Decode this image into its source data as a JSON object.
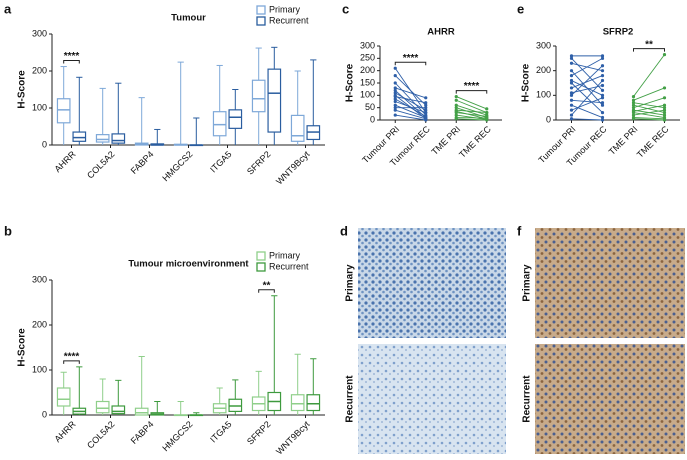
{
  "chart_data": [
    {
      "type": "box",
      "panel": "a",
      "title": "Tumour",
      "ylabel": "H-Score",
      "categories": [
        "AHRR",
        "COL5A2",
        "FABP4",
        "HMGCS2",
        "ITGA5",
        "SFRP2",
        "WNT9Bcyt"
      ],
      "ylim": [
        0,
        300
      ],
      "yticks": [
        0,
        100,
        200,
        300
      ],
      "legend": "top-right",
      "series": [
        {
          "name": "Primary",
          "color": "#7ea8d8",
          "boxes": [
            [
              0,
              60,
              95,
              125,
              212
            ],
            [
              0,
              8,
              15,
              28,
              153
            ],
            [
              0,
              0,
              2,
              5,
              128
            ],
            [
              0,
              0,
              0,
              2,
              224
            ],
            [
              0,
              25,
              55,
              90,
              215
            ],
            [
              0,
              90,
              125,
              175,
              262
            ],
            [
              0,
              10,
              25,
              80,
              200
            ]
          ]
        },
        {
          "name": "Recurrent",
          "color": "#2a5d9f",
          "boxes": [
            [
              0,
              10,
              20,
              35,
              183
            ],
            [
              0,
              5,
              12,
              30,
              167
            ],
            [
              0,
              0,
              0,
              3,
              42
            ],
            [
              0,
              0,
              0,
              0,
              73
            ],
            [
              0,
              45,
              75,
              95,
              150
            ],
            [
              0,
              35,
              140,
              205,
              264
            ],
            [
              0,
              15,
              35,
              52,
              230
            ]
          ]
        }
      ],
      "annotations": [
        {
          "text": "****",
          "category": "AHRR"
        }
      ]
    },
    {
      "type": "box",
      "panel": "b",
      "title": "Tumour microenvironment",
      "ylabel": "H-Score",
      "categories": [
        "AHRR",
        "COL5A2",
        "FABP4",
        "HMGCS2",
        "ITGA5",
        "SFRP2",
        "WNT9Bcyt"
      ],
      "ylim": [
        0,
        300
      ],
      "yticks": [
        0,
        100,
        200,
        300
      ],
      "legend": "top-right",
      "series": [
        {
          "name": "Primary",
          "color": "#8fcf8a",
          "boxes": [
            [
              0,
              20,
              35,
              60,
              95
            ],
            [
              0,
              5,
              15,
              30,
              80
            ],
            [
              0,
              0,
              5,
              15,
              130
            ],
            [
              0,
              0,
              0,
              0,
              30
            ],
            [
              0,
              5,
              15,
              25,
              60
            ],
            [
              0,
              10,
              25,
              40,
              97
            ],
            [
              0,
              10,
              25,
              45,
              135
            ]
          ]
        },
        {
          "name": "Recurrent",
          "color": "#3e9a3e",
          "boxes": [
            [
              0,
              2,
              8,
              15,
              107
            ],
            [
              0,
              3,
              8,
              20,
              77
            ],
            [
              0,
              0,
              2,
              5,
              30
            ],
            [
              0,
              0,
              0,
              0,
              5
            ],
            [
              0,
              8,
              20,
              35,
              78
            ],
            [
              0,
              10,
              30,
              50,
              265
            ],
            [
              0,
              10,
              25,
              45,
              125
            ]
          ]
        }
      ],
      "annotations": [
        {
          "text": "****",
          "category": "AHRR"
        },
        {
          "text": "**",
          "category": "SFRP2"
        }
      ]
    },
    {
      "type": "paired",
      "panel": "c",
      "title": "AHRR",
      "ylabel": "H-Score",
      "categories": [
        "Tumour PRI",
        "Tumour REC",
        "TME PRI",
        "TME REC"
      ],
      "ylim": [
        0,
        300
      ],
      "yticks": [
        0,
        50,
        100,
        150,
        200,
        250,
        300
      ],
      "groups": [
        {
          "color": "#2e5fa8",
          "pairs": [
            [
              210,
              30
            ],
            [
              180,
              60
            ],
            [
              150,
              20
            ],
            [
              130,
              90
            ],
            [
              120,
              10
            ],
            [
              110,
              40
            ],
            [
              100,
              5
            ],
            [
              95,
              70
            ],
            [
              85,
              15
            ],
            [
              75,
              30
            ],
            [
              60,
              10
            ],
            [
              50,
              50
            ],
            [
              40,
              5
            ],
            [
              20,
              0
            ]
          ]
        },
        {
          "color": "#43a047",
          "pairs": [
            [
              95,
              45
            ],
            [
              80,
              30
            ],
            [
              60,
              20
            ],
            [
              50,
              10
            ],
            [
              40,
              30
            ],
            [
              35,
              5
            ],
            [
              30,
              15
            ],
            [
              20,
              2
            ],
            [
              10,
              8
            ],
            [
              5,
              0
            ]
          ]
        }
      ],
      "annotations": [
        {
          "text": "****",
          "from": "Tumour PRI",
          "to": "Tumour REC"
        },
        {
          "text": "****",
          "from": "TME PRI",
          "to": "TME REC"
        }
      ]
    },
    {
      "type": "paired",
      "panel": "e",
      "title": "SFRP2",
      "ylabel": "H-Score",
      "categories": [
        "Tumour PRI",
        "Tumour REC",
        "TME PRI",
        "TME REC"
      ],
      "ylim": [
        0,
        300
      ],
      "yticks": [
        0,
        100,
        200,
        300
      ],
      "groups": [
        {
          "color": "#2e5fa8",
          "pairs": [
            [
              260,
              260
            ],
            [
              250,
              120
            ],
            [
              230,
              200
            ],
            [
              200,
              60
            ],
            [
              180,
              250
            ],
            [
              160,
              100
            ],
            [
              150,
              30
            ],
            [
              130,
              180
            ],
            [
              110,
              140
            ],
            [
              100,
              220
            ],
            [
              80,
              70
            ],
            [
              60,
              10
            ],
            [
              40,
              90
            ],
            [
              20,
              160
            ],
            [
              5,
              0
            ]
          ]
        },
        {
          "color": "#43a047",
          "pairs": [
            [
              95,
              265
            ],
            [
              80,
              130
            ],
            [
              70,
              50
            ],
            [
              60,
              30
            ],
            [
              50,
              90
            ],
            [
              40,
              20
            ],
            [
              35,
              60
            ],
            [
              30,
              10
            ],
            [
              20,
              40
            ],
            [
              10,
              5
            ],
            [
              5,
              0
            ]
          ]
        }
      ],
      "annotations": [
        {
          "text": "**",
          "from": "TME PRI",
          "to": "TME REC"
        }
      ]
    }
  ],
  "images": [
    {
      "panel": "d",
      "rows": [
        "Primary",
        "Recurrent"
      ]
    },
    {
      "panel": "f",
      "rows": [
        "Primary",
        "Recurrent"
      ]
    }
  ]
}
